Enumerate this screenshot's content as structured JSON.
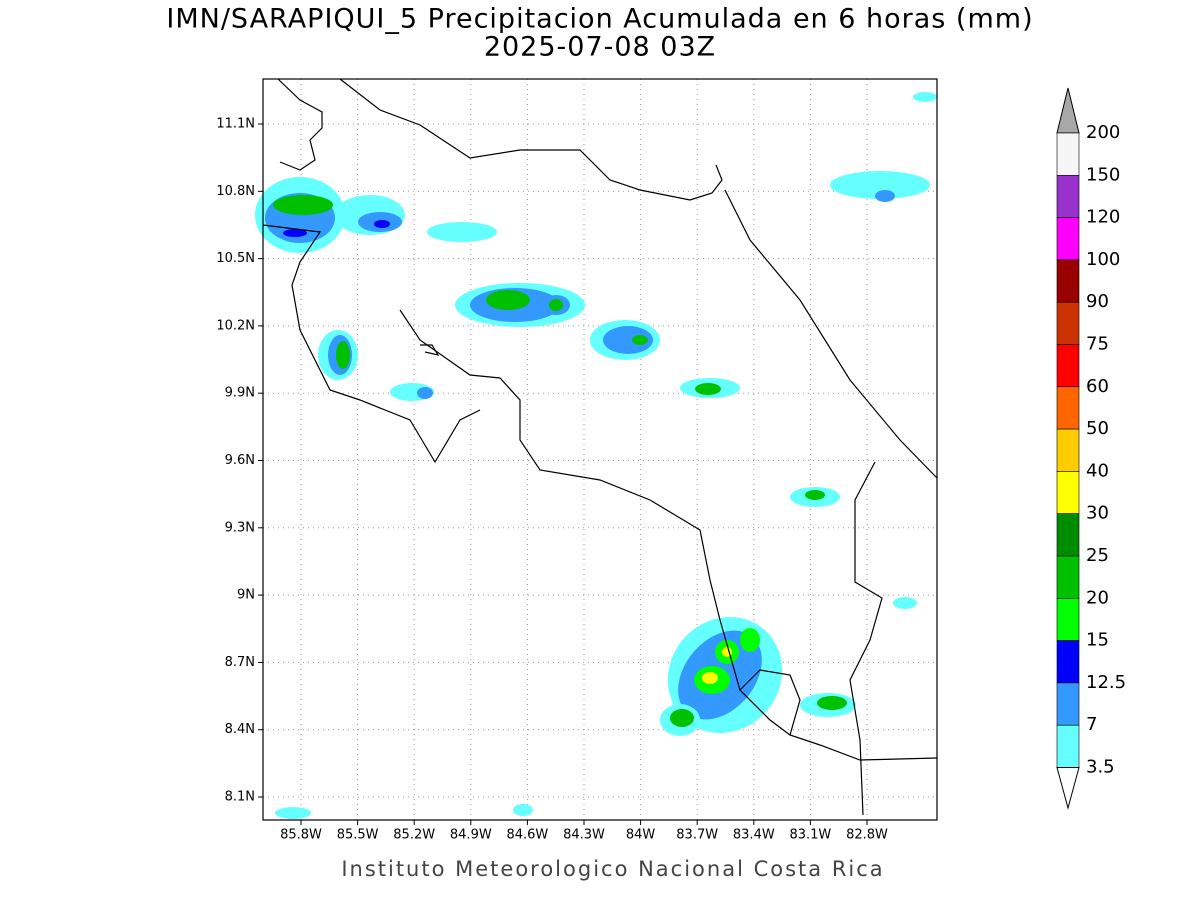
{
  "header": {
    "title": "IMN/SARAPIQUI_5 Precipitacion Acumulada en 6 horas (mm)",
    "subtitle": "2025-07-08 03Z"
  },
  "map": {
    "lat_labels": [
      "11.1N",
      "10.8N",
      "10.5N",
      "10.2N",
      "9.9N",
      "9.6N",
      "9.3N",
      "9N",
      "8.7N",
      "8.4N",
      "8.1N"
    ],
    "lon_labels": [
      "85.8W",
      "85.5W",
      "85.2W",
      "84.9W",
      "84.6W",
      "84.3W",
      "84W",
      "83.7W",
      "83.4W",
      "83.1W",
      "82.8W"
    ]
  },
  "colorbar": {
    "labels": [
      "200",
      "150",
      "120",
      "100",
      "90",
      "75",
      "60",
      "50",
      "40",
      "30",
      "25",
      "20",
      "15",
      "12.5",
      "7",
      "3.5"
    ],
    "colors": [
      "#f5f5f5",
      "#9932cc",
      "#ff00ff",
      "#990000",
      "#cc3300",
      "#ff0000",
      "#ff6600",
      "#ffcc00",
      "#ffff00",
      "#008c00",
      "#00c000",
      "#00ff00",
      "#0000ff",
      "#3399ff",
      "#66ffff"
    ],
    "over_color": "#a8a8a8",
    "under_color": "#ffffff"
  },
  "footer": "Instituto Meteorologico Nacional Costa Rica"
}
